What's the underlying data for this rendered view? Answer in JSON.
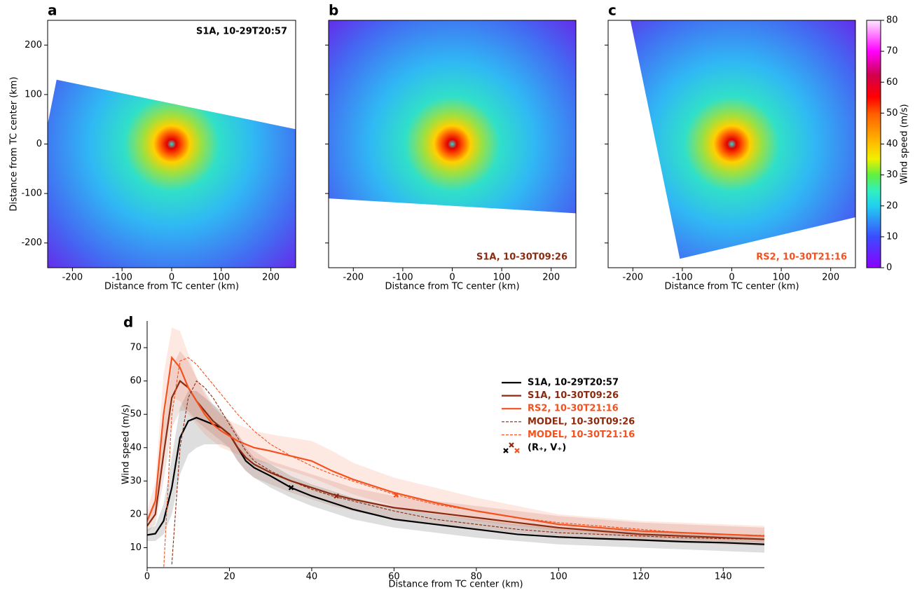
{
  "chart_data": [
    {
      "type": "map",
      "panel": "a",
      "annotation": "S1A, 10-29T20:57",
      "annotation_color": "#000000",
      "annotation_corner": "upper right",
      "xlabel": "Distance from TC center (km)",
      "ylabel": "Distance from TC center (km)",
      "xlim": [
        -250,
        250
      ],
      "ylim": [
        -250,
        250
      ],
      "xticks": [
        -200,
        -100,
        0,
        100,
        200
      ],
      "yticks": [
        -200,
        -100,
        0,
        100,
        200
      ],
      "ytick_labels": true
    },
    {
      "type": "map",
      "panel": "b",
      "annotation": "S1A, 10-30T09:26",
      "annotation_color": "#8b2a0e",
      "annotation_corner": "lower right",
      "xlabel": "Distance from TC center (km)",
      "xlim": [
        -250,
        250
      ],
      "ylim": [
        -250,
        250
      ],
      "xticks": [
        -200,
        -100,
        0,
        100,
        200
      ],
      "yticks": [
        -200,
        -100,
        0,
        100,
        200
      ],
      "ytick_labels": false
    },
    {
      "type": "map",
      "panel": "c",
      "annotation": "RS2, 10-30T21:16",
      "annotation_color": "#f4511e",
      "annotation_corner": "lower right",
      "xlabel": "Distance from TC center (km)",
      "xlim": [
        -250,
        250
      ],
      "ylim": [
        -250,
        250
      ],
      "xticks": [
        -200,
        -100,
        0,
        100,
        200
      ],
      "yticks": [
        -200,
        -100,
        0,
        100,
        200
      ],
      "ytick_labels": false,
      "colorbar": {
        "label": "Wind speed (m/s)",
        "lim": [
          0,
          80
        ],
        "ticks": [
          0,
          10,
          20,
          30,
          40,
          50,
          60,
          70,
          80
        ]
      }
    },
    {
      "type": "line",
      "panel": "d",
      "xlabel": "Distance from TC center (km)",
      "ylabel": "Wind speed (m/s)",
      "xlim": [
        0,
        150
      ],
      "ylim": [
        4,
        78
      ],
      "xticks": [
        0,
        20,
        40,
        60,
        80,
        100,
        120,
        140
      ],
      "yticks": [
        10,
        20,
        30,
        40,
        50,
        60,
        70
      ],
      "x": [
        0,
        2,
        4,
        6,
        8,
        10,
        12,
        14,
        16,
        18,
        20,
        22,
        24,
        26,
        30,
        35,
        40,
        45,
        50,
        60,
        70,
        80,
        90,
        100,
        110,
        120,
        130,
        140,
        150
      ],
      "series": [
        {
          "name": "S1A, 10-29T20:57",
          "color": "#000000",
          "dashed": false,
          "values": [
            13.8,
            14.2,
            18,
            28,
            43,
            48,
            49,
            48,
            47,
            46,
            44,
            40,
            36,
            34,
            31.5,
            28,
            25.5,
            23.5,
            21.5,
            18.5,
            17,
            15.5,
            14,
            13.2,
            12.7,
            12.3,
            11.8,
            11.5,
            11
          ],
          "lower": [
            12,
            12,
            14,
            20,
            32,
            38,
            40,
            41,
            41,
            41,
            40,
            36,
            33,
            31,
            28,
            25,
            22.5,
            20.5,
            18.5,
            16,
            14.5,
            13,
            12,
            11,
            10.5,
            10,
            9.5,
            9,
            8.5
          ],
          "upper": [
            15.5,
            16.5,
            23,
            37,
            52,
            57,
            57,
            55,
            53,
            51,
            48,
            44,
            40,
            37,
            35,
            31.5,
            29,
            27,
            25,
            22,
            20,
            18.5,
            17,
            16,
            15.5,
            15,
            14.5,
            14,
            13.5
          ]
        },
        {
          "name": "S1A, 10-30T09:26",
          "color": "#8b2a0e",
          "dashed": false,
          "values": [
            16.5,
            20,
            38,
            55,
            60,
            58,
            54,
            51,
            48,
            46,
            44,
            40,
            37,
            35,
            32.5,
            30,
            28,
            26,
            24.5,
            22,
            20.5,
            19,
            17.5,
            16,
            15,
            14,
            13.5,
            13,
            12.5
          ],
          "lower": [
            14.5,
            17,
            30,
            46,
            51,
            51,
            48,
            46,
            44,
            42,
            40,
            36,
            33,
            31,
            29,
            26.5,
            24.5,
            22.5,
            21,
            18.5,
            17,
            15.5,
            14.5,
            13.5,
            12.5,
            12,
            11.5,
            11,
            10.5
          ],
          "upper": [
            19,
            25,
            47,
            64,
            69,
            66,
            61,
            57,
            53,
            50,
            48,
            44,
            41,
            39,
            36,
            34,
            32,
            30,
            28,
            25.5,
            24,
            22.5,
            21,
            19.5,
            18.5,
            17.5,
            17,
            16.5,
            16
          ]
        },
        {
          "name": "RS2, 10-30T21:16",
          "color": "#f4511e",
          "dashed": false,
          "values": [
            18,
            24,
            50,
            67,
            64,
            58,
            54,
            50,
            47,
            45,
            43.5,
            42,
            41,
            40,
            39,
            37.5,
            36,
            33,
            30.5,
            26.5,
            23.5,
            21,
            19,
            17,
            16,
            15,
            14.5,
            14,
            13.5
          ],
          "lower": [
            16,
            20,
            40,
            55,
            54,
            50,
            47,
            44,
            42,
            40,
            39,
            38,
            37,
            36,
            35,
            33,
            31,
            28.5,
            26,
            22.5,
            20,
            18,
            16.5,
            15,
            14,
            13,
            12.5,
            12,
            11.5
          ],
          "upper": [
            21,
            30,
            62,
            76,
            75,
            68,
            61,
            56,
            52,
            50,
            48,
            47,
            46,
            45,
            44,
            43,
            42,
            39,
            35.5,
            31,
            28,
            25,
            22.5,
            20,
            19,
            18,
            17.5,
            17,
            16.5
          ]
        },
        {
          "name": "MODEL, 10-30T09:26",
          "color": "#8b2a0e",
          "dashed": true,
          "values": [
            null,
            null,
            null,
            5,
            40,
            55,
            60,
            58,
            55,
            51,
            47,
            43,
            39,
            36,
            33,
            30,
            27.5,
            25.5,
            24,
            21,
            18.5,
            17,
            15.5,
            14.5,
            14,
            13.5,
            13,
            12.7,
            12.5
          ]
        },
        {
          "name": "MODEL, 10-30T21:16",
          "color": "#f4511e",
          "dashed": true,
          "values": [
            null,
            null,
            3,
            50,
            66,
            67,
            65,
            62,
            59,
            56,
            53,
            50,
            47.5,
            45,
            41,
            37.5,
            34.5,
            32,
            30,
            26,
            23,
            21,
            19,
            17.5,
            16.5,
            15.5,
            14.5,
            14,
            13.7
          ]
        }
      ],
      "markers": {
        "name": "(R₊, V₊)",
        "x": [
          35,
          46,
          60.5
        ],
        "y": [
          28,
          25.5,
          25.8
        ],
        "colors": [
          "#000000",
          "#8b2a0e",
          "#f4511e"
        ]
      }
    }
  ]
}
